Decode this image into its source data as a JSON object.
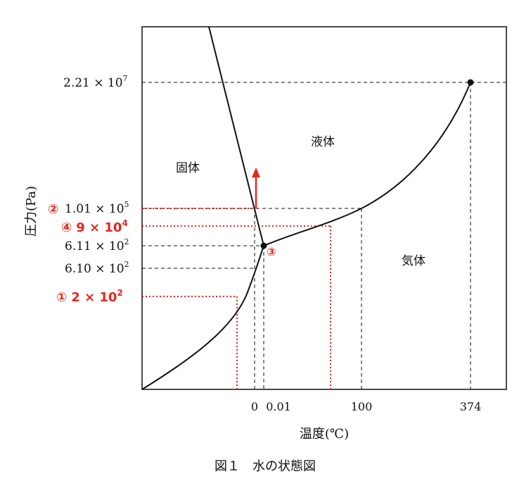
{
  "colors": {
    "line": "#111111",
    "annotation": "#e8261c"
  },
  "axes": {
    "y_label": "圧力(Pa)",
    "x_label": "温度(℃)",
    "y_ticks": [
      "2.21 × 10",
      "1.01 × 10",
      "6.11 × 10",
      "6.10 × 10"
    ],
    "y_tick_exponents": [
      "7",
      "5",
      "2",
      "2"
    ],
    "x_ticks": [
      "0",
      "0.01",
      "100",
      "374"
    ]
  },
  "regions": {
    "solid": "固体",
    "liquid": "液体",
    "gas": "気体"
  },
  "annotations": {
    "label_1_mark": "①",
    "label_1_value": "2 × 10",
    "label_1_exp": "2",
    "label_2_mark": "②",
    "label_3_mark": "③",
    "label_4_mark": "④",
    "label_4_value": "9 × 10",
    "label_4_exp": "4"
  },
  "caption": "図１　水の状態図"
}
